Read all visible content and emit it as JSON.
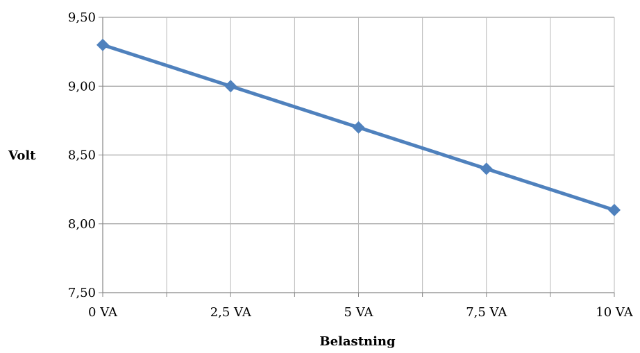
{
  "chart_data": {
    "type": "line",
    "title": "",
    "xlabel": "Belastning",
    "ylabel": "Volt",
    "categories": [
      "0 VA",
      "2,5 VA",
      "5 VA",
      "7,5 VA",
      "10 VA"
    ],
    "y_tick_labels": [
      "7,50",
      "8,00",
      "8,50",
      "9,00",
      "9,50"
    ],
    "y_ticks": [
      7.5,
      8.0,
      8.5,
      9.0,
      9.5
    ],
    "ylim": [
      7.5,
      9.5
    ],
    "grid": true,
    "legend": "none",
    "series": [
      {
        "values": [
          9.3,
          9.0,
          8.7,
          8.4,
          8.1
        ],
        "color": "#4F81BD",
        "marker": "diamond"
      }
    ]
  }
}
